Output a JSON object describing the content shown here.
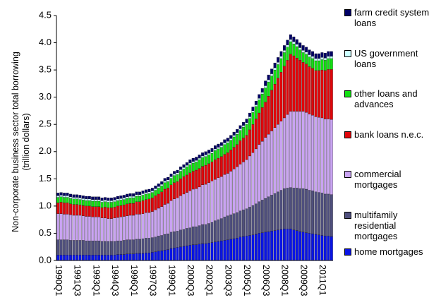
{
  "chart_data": {
    "type": "stacked_bar",
    "y_label": "Non-corporate business sector total borrowing (trillion dollars)",
    "categories": [
      "1990Q1",
      null,
      null,
      null,
      null,
      null,
      "1991Q3",
      null,
      null,
      null,
      null,
      null,
      "1993Q1",
      null,
      null,
      null,
      null,
      null,
      "1994Q3",
      null,
      null,
      null,
      null,
      null,
      "1996Q1",
      null,
      null,
      null,
      null,
      null,
      "1997Q3",
      null,
      null,
      null,
      null,
      null,
      "1999Q1",
      null,
      null,
      null,
      null,
      null,
      "2000Q3",
      null,
      null,
      null,
      null,
      null,
      "2002Q1",
      null,
      null,
      null,
      null,
      null,
      "2003Q3",
      null,
      null,
      null,
      null,
      null,
      "2005Q1",
      null,
      null,
      null,
      null,
      null,
      "2006Q3",
      null,
      null,
      null,
      null,
      null,
      "2008Q1",
      null,
      null,
      null,
      null,
      null,
      "2009Q3",
      null,
      null,
      null,
      null,
      null,
      "2011Q1",
      null,
      null,
      null
    ],
    "ylim": [
      0,
      4.5
    ],
    "yticks": [
      {
        "value": 0,
        "label": "0.0"
      },
      0.5,
      {
        "value": 1,
        "label": "1.0"
      },
      1.5,
      {
        "value": 2,
        "label": "2.0"
      },
      2.5,
      {
        "value": 3,
        "label": "3.0"
      },
      3.5,
      {
        "value": 4,
        "label": "4.0"
      },
      4.5
    ],
    "series": [
      {
        "name": "home mortgages",
        "color": "#0a14e6",
        "values": [
          0.1,
          0.1,
          0.1,
          0.1,
          0.1,
          0.1,
          0.1,
          0.1,
          0.1,
          0.1,
          0.1,
          0.1,
          0.1,
          0.1,
          0.1,
          0.1,
          0.1,
          0.1,
          0.1,
          0.11,
          0.11,
          0.11,
          0.12,
          0.12,
          0.12,
          0.13,
          0.13,
          0.13,
          0.14,
          0.14,
          0.15,
          0.16,
          0.17,
          0.18,
          0.19,
          0.2,
          0.22,
          0.23,
          0.24,
          0.25,
          0.26,
          0.27,
          0.28,
          0.29,
          0.29,
          0.3,
          0.31,
          0.31,
          0.32,
          0.33,
          0.34,
          0.35,
          0.36,
          0.37,
          0.38,
          0.39,
          0.4,
          0.41,
          0.43,
          0.44,
          0.45,
          0.46,
          0.47,
          0.48,
          0.5,
          0.51,
          0.52,
          0.53,
          0.54,
          0.55,
          0.56,
          0.57,
          0.58,
          0.58,
          0.58,
          0.56,
          0.55,
          0.53,
          0.52,
          0.51,
          0.5,
          0.49,
          0.48,
          0.47,
          0.46,
          0.45,
          0.45,
          0.44
        ]
      },
      {
        "name": "multifamily residential mortgages",
        "color": "#4f4f7d",
        "values": [
          0.28,
          0.28,
          0.28,
          0.28,
          0.27,
          0.27,
          0.27,
          0.27,
          0.27,
          0.26,
          0.26,
          0.26,
          0.26,
          0.26,
          0.25,
          0.25,
          0.25,
          0.25,
          0.25,
          0.25,
          0.25,
          0.26,
          0.26,
          0.26,
          0.26,
          0.26,
          0.26,
          0.27,
          0.27,
          0.27,
          0.27,
          0.27,
          0.28,
          0.28,
          0.29,
          0.29,
          0.3,
          0.3,
          0.3,
          0.31,
          0.31,
          0.32,
          0.32,
          0.33,
          0.33,
          0.34,
          0.35,
          0.35,
          0.36,
          0.37,
          0.39,
          0.4,
          0.41,
          0.43,
          0.44,
          0.45,
          0.46,
          0.47,
          0.48,
          0.49,
          0.5,
          0.52,
          0.54,
          0.56,
          0.58,
          0.6,
          0.62,
          0.64,
          0.66,
          0.68,
          0.7,
          0.72,
          0.74,
          0.75,
          0.76,
          0.77,
          0.78,
          0.79,
          0.8,
          0.8,
          0.79,
          0.79,
          0.78,
          0.78,
          0.78,
          0.77,
          0.77,
          0.77
        ]
      },
      {
        "name": "commercial mortgages",
        "color": "#c9a3f2",
        "values": [
          0.48,
          0.48,
          0.47,
          0.47,
          0.47,
          0.46,
          0.46,
          0.46,
          0.45,
          0.45,
          0.45,
          0.44,
          0.44,
          0.44,
          0.43,
          0.43,
          0.42,
          0.42,
          0.43,
          0.43,
          0.44,
          0.44,
          0.44,
          0.45,
          0.45,
          0.46,
          0.46,
          0.46,
          0.47,
          0.47,
          0.48,
          0.5,
          0.51,
          0.53,
          0.55,
          0.56,
          0.58,
          0.6,
          0.61,
          0.63,
          0.65,
          0.66,
          0.68,
          0.69,
          0.7,
          0.71,
          0.73,
          0.74,
          0.75,
          0.76,
          0.76,
          0.77,
          0.77,
          0.78,
          0.78,
          0.8,
          0.82,
          0.84,
          0.86,
          0.88,
          0.9,
          0.94,
          0.97,
          1.01,
          1.05,
          1.08,
          1.12,
          1.15,
          1.18,
          1.21,
          1.24,
          1.27,
          1.3,
          1.35,
          1.4,
          1.41,
          1.41,
          1.42,
          1.42,
          1.41,
          1.4,
          1.39,
          1.38,
          1.38,
          1.38,
          1.38,
          1.38,
          1.38
        ]
      },
      {
        "name": "bank loans n.e.c.",
        "color": "#e0060b",
        "values": [
          0.2,
          0.21,
          0.21,
          0.21,
          0.2,
          0.2,
          0.2,
          0.19,
          0.19,
          0.19,
          0.19,
          0.19,
          0.19,
          0.19,
          0.19,
          0.2,
          0.2,
          0.2,
          0.2,
          0.21,
          0.21,
          0.21,
          0.22,
          0.22,
          0.22,
          0.23,
          0.23,
          0.24,
          0.24,
          0.25,
          0.25,
          0.26,
          0.26,
          0.27,
          0.28,
          0.28,
          0.29,
          0.3,
          0.3,
          0.31,
          0.32,
          0.32,
          0.33,
          0.33,
          0.34,
          0.34,
          0.34,
          0.35,
          0.35,
          0.35,
          0.36,
          0.36,
          0.37,
          0.37,
          0.38,
          0.39,
          0.4,
          0.41,
          0.43,
          0.44,
          0.45,
          0.48,
          0.52,
          0.55,
          0.58,
          0.62,
          0.65,
          0.7,
          0.75,
          0.8,
          0.85,
          0.9,
          0.95,
          1.0,
          1.05,
          1.02,
          0.98,
          0.94,
          0.9,
          0.89,
          0.87,
          0.86,
          0.85,
          0.86,
          0.88,
          0.89,
          0.91,
          0.92
        ]
      },
      {
        "name": "other loans and advances",
        "color": "#12e012",
        "values": [
          0.1,
          0.1,
          0.1,
          0.1,
          0.1,
          0.1,
          0.1,
          0.1,
          0.1,
          0.1,
          0.1,
          0.1,
          0.1,
          0.1,
          0.1,
          0.1,
          0.1,
          0.1,
          0.1,
          0.1,
          0.1,
          0.1,
          0.1,
          0.1,
          0.1,
          0.1,
          0.1,
          0.1,
          0.1,
          0.1,
          0.1,
          0.1,
          0.11,
          0.11,
          0.12,
          0.12,
          0.12,
          0.13,
          0.13,
          0.14,
          0.14,
          0.15,
          0.15,
          0.15,
          0.15,
          0.16,
          0.16,
          0.16,
          0.16,
          0.16,
          0.17,
          0.17,
          0.17,
          0.18,
          0.18,
          0.18,
          0.19,
          0.19,
          0.19,
          0.2,
          0.2,
          0.21,
          0.22,
          0.23,
          0.24,
          0.25,
          0.26,
          0.26,
          0.26,
          0.26,
          0.25,
          0.25,
          0.25,
          0.24,
          0.23,
          0.22,
          0.21,
          0.19,
          0.18,
          0.18,
          0.18,
          0.18,
          0.18,
          0.18,
          0.19,
          0.19,
          0.2,
          0.2
        ]
      },
      {
        "name": "US government loans",
        "color": "#ccffff",
        "values": [
          0.03,
          0.03,
          0.03,
          0.03,
          0.03,
          0.03,
          0.03,
          0.03,
          0.03,
          0.03,
          0.03,
          0.03,
          0.03,
          0.03,
          0.03,
          0.03,
          0.03,
          0.03,
          0.03,
          0.03,
          0.03,
          0.03,
          0.03,
          0.03,
          0.03,
          0.03,
          0.03,
          0.03,
          0.03,
          0.03,
          0.03,
          0.03,
          0.03,
          0.03,
          0.03,
          0.03,
          0.03,
          0.03,
          0.03,
          0.03,
          0.03,
          0.03,
          0.03,
          0.03,
          0.03,
          0.03,
          0.03,
          0.03,
          0.03,
          0.03,
          0.03,
          0.03,
          0.03,
          0.03,
          0.03,
          0.03,
          0.03,
          0.03,
          0.03,
          0.03,
          0.03,
          0.03,
          0.03,
          0.03,
          0.03,
          0.03,
          0.04,
          0.04,
          0.04,
          0.04,
          0.04,
          0.04,
          0.04,
          0.04,
          0.04,
          0.04,
          0.04,
          0.04,
          0.04,
          0.04,
          0.04,
          0.04,
          0.04,
          0.04,
          0.04,
          0.04,
          0.04,
          0.04
        ]
      },
      {
        "name": "farm credit system loans",
        "color": "#000066",
        "values": [
          0.05,
          0.05,
          0.05,
          0.05,
          0.05,
          0.05,
          0.05,
          0.05,
          0.05,
          0.05,
          0.05,
          0.05,
          0.05,
          0.05,
          0.05,
          0.05,
          0.05,
          0.05,
          0.05,
          0.05,
          0.05,
          0.05,
          0.05,
          0.05,
          0.05,
          0.05,
          0.05,
          0.05,
          0.05,
          0.05,
          0.05,
          0.05,
          0.05,
          0.05,
          0.05,
          0.05,
          0.05,
          0.05,
          0.05,
          0.05,
          0.05,
          0.05,
          0.06,
          0.06,
          0.06,
          0.06,
          0.06,
          0.06,
          0.06,
          0.06,
          0.06,
          0.06,
          0.06,
          0.06,
          0.06,
          0.06,
          0.06,
          0.06,
          0.06,
          0.06,
          0.07,
          0.07,
          0.07,
          0.07,
          0.07,
          0.07,
          0.09,
          0.09,
          0.09,
          0.09,
          0.09,
          0.09,
          0.09,
          0.09,
          0.09,
          0.09,
          0.09,
          0.09,
          0.09,
          0.09,
          0.09,
          0.09,
          0.09,
          0.09,
          0.09,
          0.09,
          0.09,
          0.09
        ]
      }
    ],
    "legend": "right"
  }
}
